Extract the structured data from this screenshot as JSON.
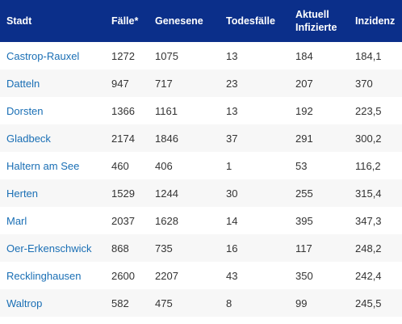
{
  "table": {
    "headers": {
      "stadt": "Stadt",
      "faelle": "Fälle*",
      "genesene": "Genesene",
      "todesfaelle": "Todesfälle",
      "aktuell_line1": "Aktuell",
      "aktuell_line2": "Infizierte",
      "inzidenz": "Inzidenz"
    },
    "header_color": "#0b2f8a",
    "link_color": "#1a6fb5",
    "rows": [
      {
        "stadt": "Castrop-Rauxel",
        "faelle": "1272",
        "genesene": "1075",
        "todesfaelle": "13",
        "aktuell": "184",
        "inzidenz": "184,1"
      },
      {
        "stadt": "Datteln",
        "faelle": "947",
        "genesene": "717",
        "todesfaelle": "23",
        "aktuell": "207",
        "inzidenz": "370"
      },
      {
        "stadt": "Dorsten",
        "faelle": "1366",
        "genesene": "1161",
        "todesfaelle": "13",
        "aktuell": "192",
        "inzidenz": "223,5"
      },
      {
        "stadt": "Gladbeck",
        "faelle": "2174",
        "genesene": "1846",
        "todesfaelle": "37",
        "aktuell": "291",
        "inzidenz": "300,2"
      },
      {
        "stadt": "Haltern am See",
        "faelle": "460",
        "genesene": "406",
        "todesfaelle": "1",
        "aktuell": "53",
        "inzidenz": "116,2"
      },
      {
        "stadt": "Herten",
        "faelle": "1529",
        "genesene": "1244",
        "todesfaelle": "30",
        "aktuell": "255",
        "inzidenz": "315,4"
      },
      {
        "stadt": "Marl",
        "faelle": "2037",
        "genesene": "1628",
        "todesfaelle": "14",
        "aktuell": "395",
        "inzidenz": "347,3"
      },
      {
        "stadt": "Oer-Erkenschwick",
        "faelle": "868",
        "genesene": "735",
        "todesfaelle": "16",
        "aktuell": "117",
        "inzidenz": "248,2"
      },
      {
        "stadt": "Recklinghausen",
        "faelle": "2600",
        "genesene": "2207",
        "todesfaelle": "43",
        "aktuell": "350",
        "inzidenz": "242,4"
      },
      {
        "stadt": "Waltrop",
        "faelle": "582",
        "genesene": "475",
        "todesfaelle": "8",
        "aktuell": "99",
        "inzidenz": "245,5"
      }
    ]
  }
}
